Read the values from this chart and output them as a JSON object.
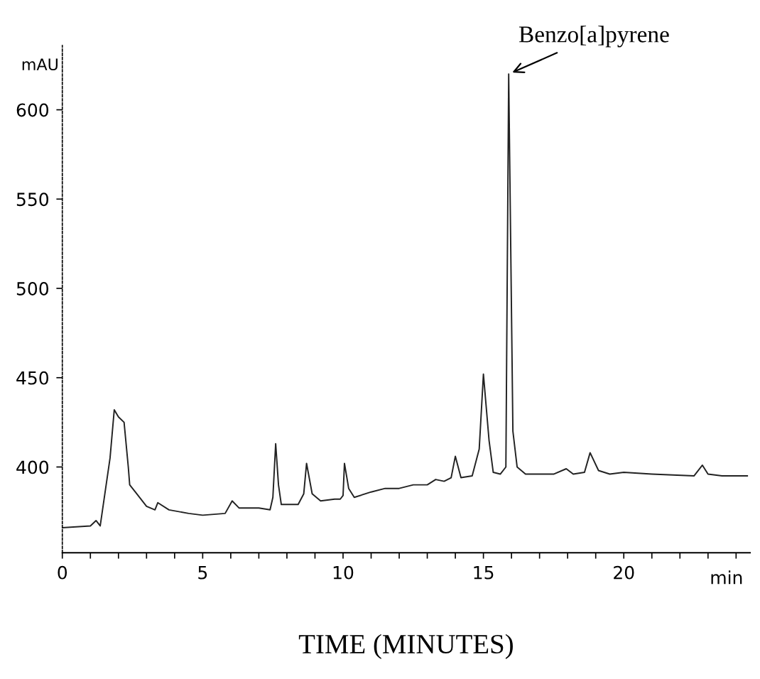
{
  "chart_data": {
    "type": "line",
    "xlabel": "TIME (MINUTES)",
    "ylabel": "mAU",
    "annotations": [
      {
        "text": "Benzo[a]pyrene",
        "x": 15.9,
        "y": 620
      },
      "min"
    ],
    "xlim": [
      0,
      24.5
    ],
    "ylim": [
      352,
      636
    ],
    "xticks": [
      0,
      {
        "value": 1,
        "label": null
      },
      {
        "value": 2,
        "label": null
      },
      {
        "value": 3,
        "label": null
      },
      {
        "value": 4,
        "label": null
      },
      5,
      {
        "value": 6,
        "label": null
      },
      {
        "value": 7,
        "label": null
      },
      {
        "value": 8,
        "label": null
      },
      {
        "value": 9,
        "label": null
      },
      10,
      {
        "value": 11,
        "label": null
      },
      {
        "value": 12,
        "label": null
      },
      {
        "value": 13,
        "label": null
      },
      {
        "value": 14,
        "label": null
      },
      15,
      {
        "value": 16,
        "label": null
      },
      {
        "value": 17,
        "label": null
      },
      {
        "value": 18,
        "label": null
      },
      {
        "value": 19,
        "label": null
      },
      20,
      {
        "value": 21,
        "label": null
      },
      {
        "value": 22,
        "label": null
      },
      {
        "value": 23,
        "label": null
      },
      {
        "value": 24,
        "label": null
      }
    ],
    "yticks": [
      400,
      450,
      500,
      550,
      600
    ],
    "grid": false,
    "legend": false,
    "series": [
      {
        "color": "#222222",
        "x": [
          0,
          1.0,
          1.2,
          1.35,
          1.7,
          1.85,
          2.0,
          2.2,
          2.35,
          2.4,
          2.6,
          3.0,
          3.3,
          3.4,
          3.8,
          4.5,
          5.0,
          5.8,
          6.05,
          6.3,
          7.0,
          7.4,
          7.5,
          7.6,
          7.7,
          7.8,
          8.4,
          8.6,
          8.7,
          8.9,
          9.2,
          9.7,
          9.9,
          10.0,
          10.05,
          10.2,
          10.4,
          11,
          11.5,
          12,
          12.5,
          13,
          13.3,
          13.6,
          13.85,
          14.0,
          14.2,
          14.6,
          14.85,
          15.0,
          15.2,
          15.35,
          15.6,
          15.8,
          15.9,
          16.05,
          16.2,
          16.5,
          17.5,
          17.95,
          18.2,
          18.6,
          18.8,
          19.1,
          19.5,
          20,
          21,
          22.5,
          22.8,
          23.0,
          23.5,
          24.4
        ],
        "values": [
          366,
          367,
          370,
          367,
          405,
          432,
          428,
          425,
          400,
          390,
          386,
          378,
          376,
          380,
          376,
          374,
          373,
          374,
          381,
          377,
          377,
          376,
          383,
          413,
          390,
          379,
          379,
          385,
          402,
          385,
          381,
          382,
          382,
          384,
          402,
          388,
          383,
          386,
          388,
          388,
          390,
          390,
          393,
          392,
          394,
          406,
          394,
          395,
          410,
          452,
          415,
          397,
          396,
          400,
          620,
          420,
          400,
          396,
          396,
          399,
          396,
          397,
          408,
          398,
          396,
          397,
          396,
          395,
          401,
          396,
          395,
          395
        ]
      }
    ]
  }
}
